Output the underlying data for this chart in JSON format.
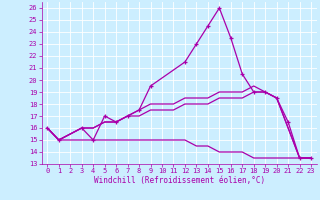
{
  "xlabel": "Windchill (Refroidissement éolien,°C)",
  "background_color": "#cceeff",
  "grid_color": "#ffffff",
  "line_color": "#aa00aa",
  "xlim": [
    -0.5,
    23.5
  ],
  "ylim": [
    13,
    26.5
  ],
  "xticks": [
    0,
    1,
    2,
    3,
    4,
    5,
    6,
    7,
    8,
    9,
    10,
    11,
    12,
    13,
    14,
    15,
    16,
    17,
    18,
    19,
    20,
    21,
    22,
    23
  ],
  "yticks": [
    13,
    14,
    15,
    16,
    17,
    18,
    19,
    20,
    21,
    22,
    23,
    24,
    25,
    26
  ],
  "line1_x": [
    0,
    1,
    3,
    4,
    5,
    6,
    7,
    8,
    9,
    12,
    13,
    14,
    15,
    16,
    17,
    18,
    19,
    20,
    21,
    22,
    23
  ],
  "line1_y": [
    16.0,
    15.0,
    16.0,
    15.0,
    17.0,
    16.5,
    17.0,
    17.5,
    19.5,
    21.5,
    23.0,
    24.5,
    26.0,
    23.5,
    20.5,
    19.0,
    19.0,
    18.5,
    16.5,
    13.5,
    13.5
  ],
  "line2_x": [
    0,
    1,
    3,
    4,
    5,
    6,
    7,
    8,
    9,
    10,
    11,
    12,
    13,
    14,
    15,
    16,
    17,
    18,
    19,
    20,
    22,
    23
  ],
  "line2_y": [
    16.0,
    15.0,
    16.0,
    16.0,
    16.5,
    16.5,
    17.0,
    17.0,
    17.5,
    17.5,
    17.5,
    18.0,
    18.0,
    18.0,
    18.5,
    18.5,
    18.5,
    19.0,
    19.0,
    18.5,
    13.5,
    13.5
  ],
  "line3_x": [
    0,
    1,
    3,
    4,
    5,
    6,
    7,
    8,
    9,
    10,
    11,
    12,
    13,
    14,
    15,
    16,
    17,
    18,
    19,
    20,
    22,
    23
  ],
  "line3_y": [
    16.0,
    15.0,
    15.0,
    15.0,
    15.0,
    15.0,
    15.0,
    15.0,
    15.0,
    15.0,
    15.0,
    15.0,
    14.5,
    14.5,
    14.0,
    14.0,
    14.0,
    13.5,
    13.5,
    13.5,
    13.5,
    13.5
  ],
  "line4_x": [
    0,
    1,
    3,
    4,
    5,
    6,
    7,
    8,
    9,
    10,
    11,
    12,
    13,
    14,
    15,
    16,
    17,
    18,
    19,
    20,
    22,
    23
  ],
  "line4_y": [
    16.0,
    15.0,
    16.0,
    16.0,
    16.5,
    16.5,
    17.0,
    17.5,
    18.0,
    18.0,
    18.0,
    18.5,
    18.5,
    18.5,
    19.0,
    19.0,
    19.0,
    19.5,
    19.0,
    18.5,
    13.5,
    13.5
  ]
}
